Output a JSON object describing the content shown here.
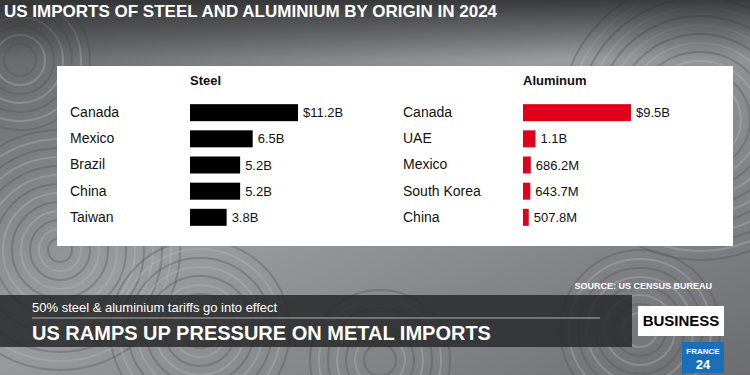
{
  "title": "US IMPORTS OF STEEL AND ALUMINIUM BY ORIGIN IN 2024",
  "chart_data": [
    {
      "type": "bar",
      "title": "Steel",
      "orientation": "horizontal",
      "categories": [
        "Canada",
        "Mexico",
        "Brazil",
        "China",
        "Taiwan"
      ],
      "values": [
        11.2,
        6.5,
        5.2,
        5.2,
        3.8
      ],
      "value_labels": [
        "$11.2B",
        "6.5B",
        "5.2B",
        "5.2B",
        "3.8B"
      ],
      "color": "#000000",
      "data_labels": true,
      "tick_labels": "y",
      "xlim": [
        0,
        11.2
      ]
    },
    {
      "type": "bar",
      "title": "Aluminum",
      "orientation": "horizontal",
      "categories": [
        "Canada",
        "UAE",
        "Mexico",
        "South Korea",
        "China"
      ],
      "values": [
        9.5,
        1.1,
        0.6862,
        0.6437,
        0.5078
      ],
      "value_labels": [
        "$9.5B",
        "1.1B",
        "686.2M",
        "643.7M",
        "507.8M"
      ],
      "color": "#e2001a",
      "data_labels": true,
      "tick_labels": "y",
      "xlim": [
        0,
        9.5
      ]
    }
  ],
  "source": "SOURCE: US CENSUS BUREAU",
  "banner": {
    "subtitle": "50% steel & aluminium tariffs go into effect",
    "headline": "US RAMPS UP PRESSURE ON METAL IMPORTS",
    "section": "BUSINESS",
    "logo": [
      "FRANCE",
      "24"
    ]
  }
}
